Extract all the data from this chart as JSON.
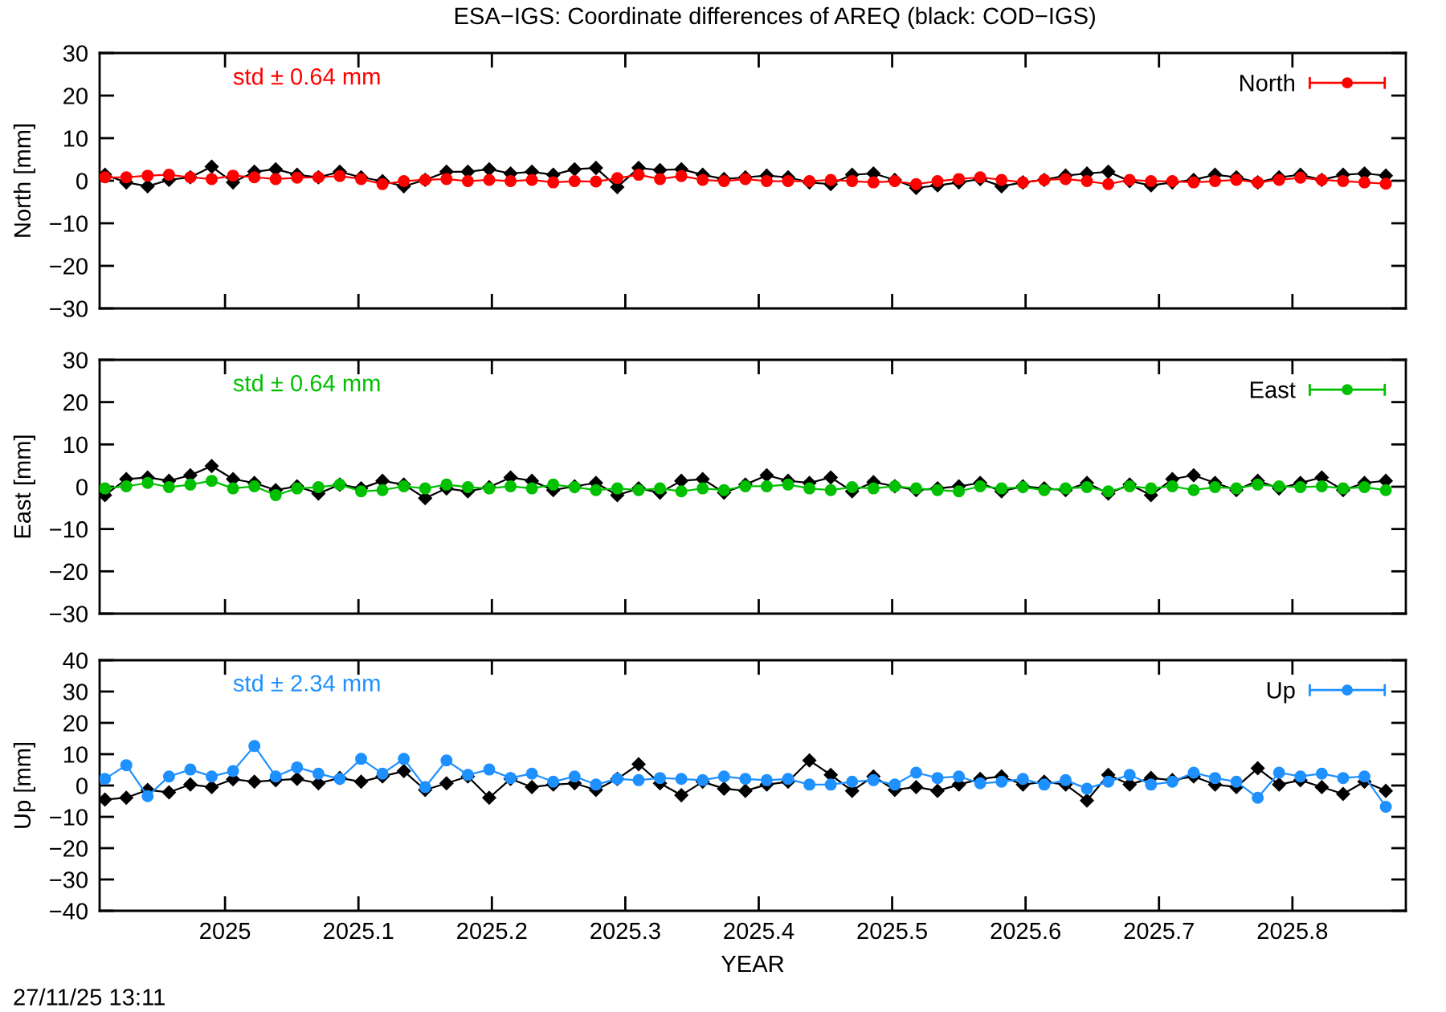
{
  "chart_data": [
    {
      "type": "line",
      "title": "ESA−IGS: Coordinate differences of AREQ (black: COD−IGS)",
      "ylabel": "North [mm]",
      "annotations": [
        "std ± 0.64 mm"
      ],
      "x": [
        2024.91,
        2024.926,
        2024.942,
        2024.958,
        2024.974,
        2024.99,
        2025.006,
        2025.022,
        2025.038,
        2025.054,
        2025.07,
        2025.086,
        2025.102,
        2025.118,
        2025.134,
        2025.15,
        2025.166,
        2025.182,
        2025.198,
        2025.214,
        2025.23,
        2025.246,
        2025.262,
        2025.278,
        2025.294,
        2025.31,
        2025.326,
        2025.342,
        2025.358,
        2025.374,
        2025.39,
        2025.406,
        2025.422,
        2025.438,
        2025.454,
        2025.47,
        2025.486,
        2025.502,
        2025.518,
        2025.534,
        2025.55,
        2025.566,
        2025.582,
        2025.598,
        2025.614,
        2025.63,
        2025.646,
        2025.662,
        2025.678,
        2025.694,
        2025.71,
        2025.726,
        2025.742,
        2025.758,
        2025.774,
        2025.79,
        2025.806,
        2025.822,
        2025.838,
        2025.854,
        2025.87
      ],
      "series": [
        {
          "color": "#000000",
          "marker": "diamond",
          "values": [
            1.4,
            -0.4,
            -1.3,
            0.2,
            0.8,
            3.3,
            -0.4,
            2.1,
            2.7,
            1.4,
            0.8,
            2.1,
            0.8,
            -0.1,
            -1.3,
            0.2,
            2.1,
            2.1,
            2.7,
            1.7,
            2.1,
            1.4,
            2.7,
            3.0,
            -1.5,
            3.0,
            2.5,
            2.7,
            1.4,
            0.4,
            0.8,
            1.2,
            0.8,
            -0.4,
            -0.8,
            1.4,
            1.7,
            0.2,
            -1.7,
            -1.1,
            -0.4,
            0.4,
            -1.3,
            -0.4,
            0.2,
            1.2,
            1.7,
            2.1,
            -0.1,
            -1.1,
            -0.4,
            0.2,
            1.4,
            0.8,
            -0.4,
            0.8,
            1.4,
            0.2,
            1.4,
            1.7,
            1.2
          ]
        },
        {
          "name": "North",
          "color": "#ff0000",
          "marker": "circle",
          "values": [
            0.8,
            0.8,
            1.2,
            1.4,
            0.8,
            0.4,
            1.2,
            0.8,
            0.4,
            0.7,
            0.8,
            1.1,
            0.4,
            -0.8,
            -0.1,
            0.2,
            0.4,
            -0.1,
            0.2,
            -0.1,
            0.2,
            -0.4,
            -0.1,
            -0.2,
            0.6,
            1.4,
            0.4,
            1.1,
            0.2,
            -0.1,
            0.4,
            -0.1,
            -0.1,
            -0.1,
            0.2,
            -0.1,
            -0.4,
            -0.1,
            -0.8,
            -0.1,
            0.4,
            0.8,
            0.2,
            -0.4,
            0.2,
            0.4,
            -0.1,
            -0.8,
            0.2,
            -0.1,
            -0.1,
            -0.4,
            -0.1,
            0.2,
            -0.4,
            0.2,
            0.7,
            0.2,
            -0.1,
            -0.4,
            -0.7
          ]
        }
      ],
      "xlim": [
        2024.906,
        2025.885
      ],
      "xticks": [
        2025,
        2025.1,
        2025.2,
        2025.3,
        2025.4,
        2025.5,
        2025.6,
        2025.7,
        2025.8
      ],
      "ylim": [
        -30,
        30
      ],
      "yticks": [
        {
          "value": -30,
          "label": "−30"
        },
        {
          "value": -20,
          "label": "−20"
        },
        {
          "value": -10,
          "label": "−10"
        },
        0,
        10,
        20,
        30
      ],
      "tick_labels": "y",
      "legend": "top right"
    },
    {
      "type": "line",
      "ylabel": "East [mm]",
      "annotations": [
        "std ± 0.64 mm"
      ],
      "x": [
        2024.91,
        2024.926,
        2024.942,
        2024.958,
        2024.974,
        2024.99,
        2025.006,
        2025.022,
        2025.038,
        2025.054,
        2025.07,
        2025.086,
        2025.102,
        2025.118,
        2025.134,
        2025.15,
        2025.166,
        2025.182,
        2025.198,
        2025.214,
        2025.23,
        2025.246,
        2025.262,
        2025.278,
        2025.294,
        2025.31,
        2025.326,
        2025.342,
        2025.358,
        2025.374,
        2025.39,
        2025.406,
        2025.422,
        2025.438,
        2025.454,
        2025.47,
        2025.486,
        2025.502,
        2025.518,
        2025.534,
        2025.55,
        2025.566,
        2025.582,
        2025.598,
        2025.614,
        2025.63,
        2025.646,
        2025.662,
        2025.678,
        2025.694,
        2025.71,
        2025.726,
        2025.742,
        2025.758,
        2025.774,
        2025.79,
        2025.806,
        2025.822,
        2025.838,
        2025.854,
        2025.87
      ],
      "series": [
        {
          "color": "#000000",
          "marker": "diamond",
          "values": [
            -2.0,
            1.8,
            2.2,
            1.4,
            2.7,
            4.9,
            1.8,
            0.9,
            -0.8,
            0.1,
            -1.6,
            0.5,
            -0.4,
            1.4,
            0.5,
            -2.7,
            -0.4,
            -1.1,
            -0.1,
            2.2,
            1.4,
            -0.8,
            0.1,
            0.9,
            -2.0,
            -0.4,
            -1.4,
            1.4,
            1.8,
            -1.4,
            0.5,
            2.7,
            1.4,
            0.9,
            2.2,
            -1.1,
            1.1,
            0.1,
            -0.8,
            -0.4,
            0.1,
            0.9,
            -1.1,
            0.1,
            -0.4,
            -0.8,
            0.9,
            -1.6,
            0.5,
            -2.0,
            1.8,
            2.7,
            0.9,
            -0.8,
            1.4,
            -0.4,
            0.9,
            2.2,
            -0.8,
            0.9,
            1.4
          ]
        },
        {
          "name": "East",
          "color": "#00c000",
          "marker": "circle",
          "values": [
            -0.4,
            0.1,
            0.9,
            -0.1,
            0.5,
            1.4,
            -0.4,
            0.1,
            -2.0,
            -0.4,
            -0.1,
            0.5,
            -1.1,
            -0.8,
            0.1,
            -0.4,
            0.5,
            -0.1,
            -0.4,
            0.1,
            -0.4,
            0.5,
            -0.1,
            -0.8,
            -0.4,
            -0.8,
            -0.4,
            -1.1,
            -0.4,
            -0.8,
            0.1,
            0.1,
            0.5,
            -0.4,
            -0.8,
            -0.1,
            -0.4,
            0.1,
            -0.4,
            -0.8,
            -1.1,
            0.1,
            -0.4,
            -0.1,
            -0.8,
            -0.4,
            -0.1,
            -1.1,
            0.1,
            -0.4,
            0.1,
            -0.8,
            -0.1,
            -0.4,
            0.5,
            0.1,
            -0.1,
            0.1,
            -0.4,
            -0.1,
            -0.8
          ]
        }
      ],
      "xlim": [
        2024.906,
        2025.885
      ],
      "xticks": [
        2025,
        2025.1,
        2025.2,
        2025.3,
        2025.4,
        2025.5,
        2025.6,
        2025.7,
        2025.8
      ],
      "ylim": [
        -30,
        30
      ],
      "yticks": [
        {
          "value": -30,
          "label": "−30"
        },
        {
          "value": -20,
          "label": "−20"
        },
        {
          "value": -10,
          "label": "−10"
        },
        0,
        10,
        20,
        30
      ],
      "tick_labels": "y",
      "legend": "top right"
    },
    {
      "type": "line",
      "xlabel": "YEAR",
      "ylabel": "Up [mm]",
      "annotations": [
        "std ± 2.34 mm",
        "27/11/25 13:11"
      ],
      "x": [
        2024.91,
        2024.926,
        2024.942,
        2024.958,
        2024.974,
        2024.99,
        2025.006,
        2025.022,
        2025.038,
        2025.054,
        2025.07,
        2025.086,
        2025.102,
        2025.118,
        2025.134,
        2025.15,
        2025.166,
        2025.182,
        2025.198,
        2025.214,
        2025.23,
        2025.246,
        2025.262,
        2025.278,
        2025.294,
        2025.31,
        2025.326,
        2025.342,
        2025.358,
        2025.374,
        2025.39,
        2025.406,
        2025.422,
        2025.438,
        2025.454,
        2025.47,
        2025.486,
        2025.502,
        2025.518,
        2025.534,
        2025.55,
        2025.566,
        2025.582,
        2025.598,
        2025.614,
        2025.63,
        2025.646,
        2025.662,
        2025.678,
        2025.694,
        2025.71,
        2025.726,
        2025.742,
        2025.758,
        2025.774,
        2025.79,
        2025.806,
        2025.822,
        2025.838,
        2025.854,
        2025.87
      ],
      "series": [
        {
          "color": "#000000",
          "marker": "diamond",
          "values": [
            -4.5,
            -3.9,
            -1.4,
            -2.2,
            0.3,
            -0.5,
            2.0,
            1.2,
            1.7,
            2.1,
            0.7,
            2.4,
            1.2,
            2.9,
            4.6,
            -1.4,
            0.7,
            2.9,
            -3.9,
            2.1,
            -0.5,
            0.3,
            0.7,
            -1.4,
            2.1,
            6.8,
            0.7,
            -3.1,
            1.2,
            -1.0,
            -1.7,
            0.3,
            1.2,
            8.0,
            3.4,
            -1.7,
            2.9,
            -1.4,
            -0.5,
            -1.7,
            0.3,
            2.1,
            2.9,
            0.3,
            1.2,
            0.3,
            -4.8,
            3.4,
            0.3,
            2.4,
            1.7,
            2.9,
            0.3,
            -0.5,
            5.5,
            0.3,
            1.7,
            -0.5,
            -2.7,
            1.2,
            -1.7
          ]
        },
        {
          "name": "Up",
          "color": "#1e90ff",
          "marker": "circle",
          "values": [
            2.1,
            6.5,
            -3.4,
            2.9,
            5.1,
            2.9,
            4.6,
            12.6,
            2.9,
            5.8,
            3.8,
            2.1,
            8.5,
            3.8,
            8.5,
            -0.5,
            8.0,
            3.4,
            5.1,
            2.4,
            3.8,
            1.2,
            2.9,
            0.3,
            2.1,
            1.7,
            2.4,
            2.1,
            1.7,
            2.9,
            2.1,
            1.7,
            2.1,
            0.3,
            0.3,
            1.2,
            1.7,
            0.3,
            4.1,
            2.4,
            2.9,
            0.7,
            1.2,
            2.1,
            0.3,
            1.7,
            -1.0,
            1.2,
            3.4,
            0.3,
            1.2,
            4.1,
            2.4,
            1.2,
            -3.9,
            4.1,
            2.9,
            3.8,
            2.4,
            2.9,
            -6.8
          ]
        }
      ],
      "xlim": [
        2024.906,
        2025.885
      ],
      "xticks": [
        2025,
        2025.1,
        2025.2,
        2025.3,
        2025.4,
        2025.5,
        2025.6,
        2025.7,
        2025.8
      ],
      "ylim": [
        -40,
        40
      ],
      "yticks": [
        {
          "value": -40,
          "label": "−40"
        },
        {
          "value": -30,
          "label": "−30"
        },
        {
          "value": -20,
          "label": "−20"
        },
        {
          "value": -10,
          "label": "−10"
        },
        0,
        10,
        20,
        30,
        40
      ],
      "legend": "top right"
    }
  ]
}
